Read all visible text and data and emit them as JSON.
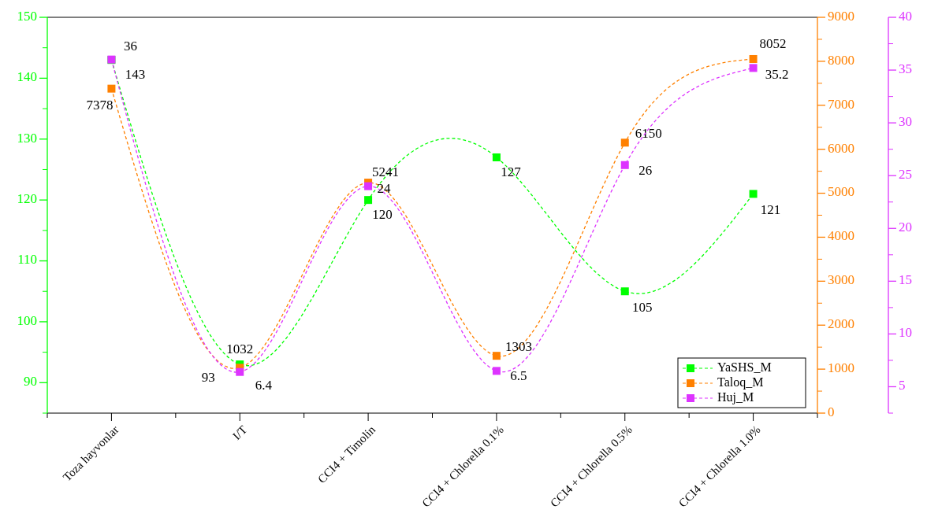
{
  "chart_data": {
    "type": "line",
    "categories": [
      "Toza hayvonlar",
      "I/T",
      "CCI4 + Timolin",
      "CCI4 + Chlorella 0.1%",
      "CCI4 + Chlorella 0.5%",
      "CCI4 + Chlorella 1.0%"
    ],
    "series": [
      {
        "name": "YaSHS_M",
        "color": "#00ff00",
        "values": [
          143,
          93,
          120,
          127,
          105,
          121
        ]
      },
      {
        "name": "Taloq_M",
        "color": "#ff8000",
        "axis": "y2",
        "values": [
          7378,
          1032,
          5241,
          1303,
          6150,
          8052
        ]
      },
      {
        "name": "Huj_M",
        "color": "#dd33ff",
        "axis": "y3",
        "values": [
          36,
          6.4,
          24,
          6.5,
          26,
          35.2
        ]
      }
    ],
    "ylim": [
      85,
      150
    ],
    "yticks": [
      90,
      100,
      110,
      120,
      130,
      140,
      150
    ],
    "y2lim": [
      0,
      9000
    ],
    "y2ticks": [
      0,
      1000,
      2000,
      3000,
      4000,
      5000,
      6000,
      7000,
      8000,
      9000
    ],
    "y3lim": [
      2.5,
      40
    ],
    "y3ticks": [
      5,
      10,
      15,
      20,
      25,
      30,
      35,
      40
    ],
    "data_labels": true,
    "marker": "square",
    "line_style": "dashed",
    "legend": "bottom right",
    "grid": false
  }
}
